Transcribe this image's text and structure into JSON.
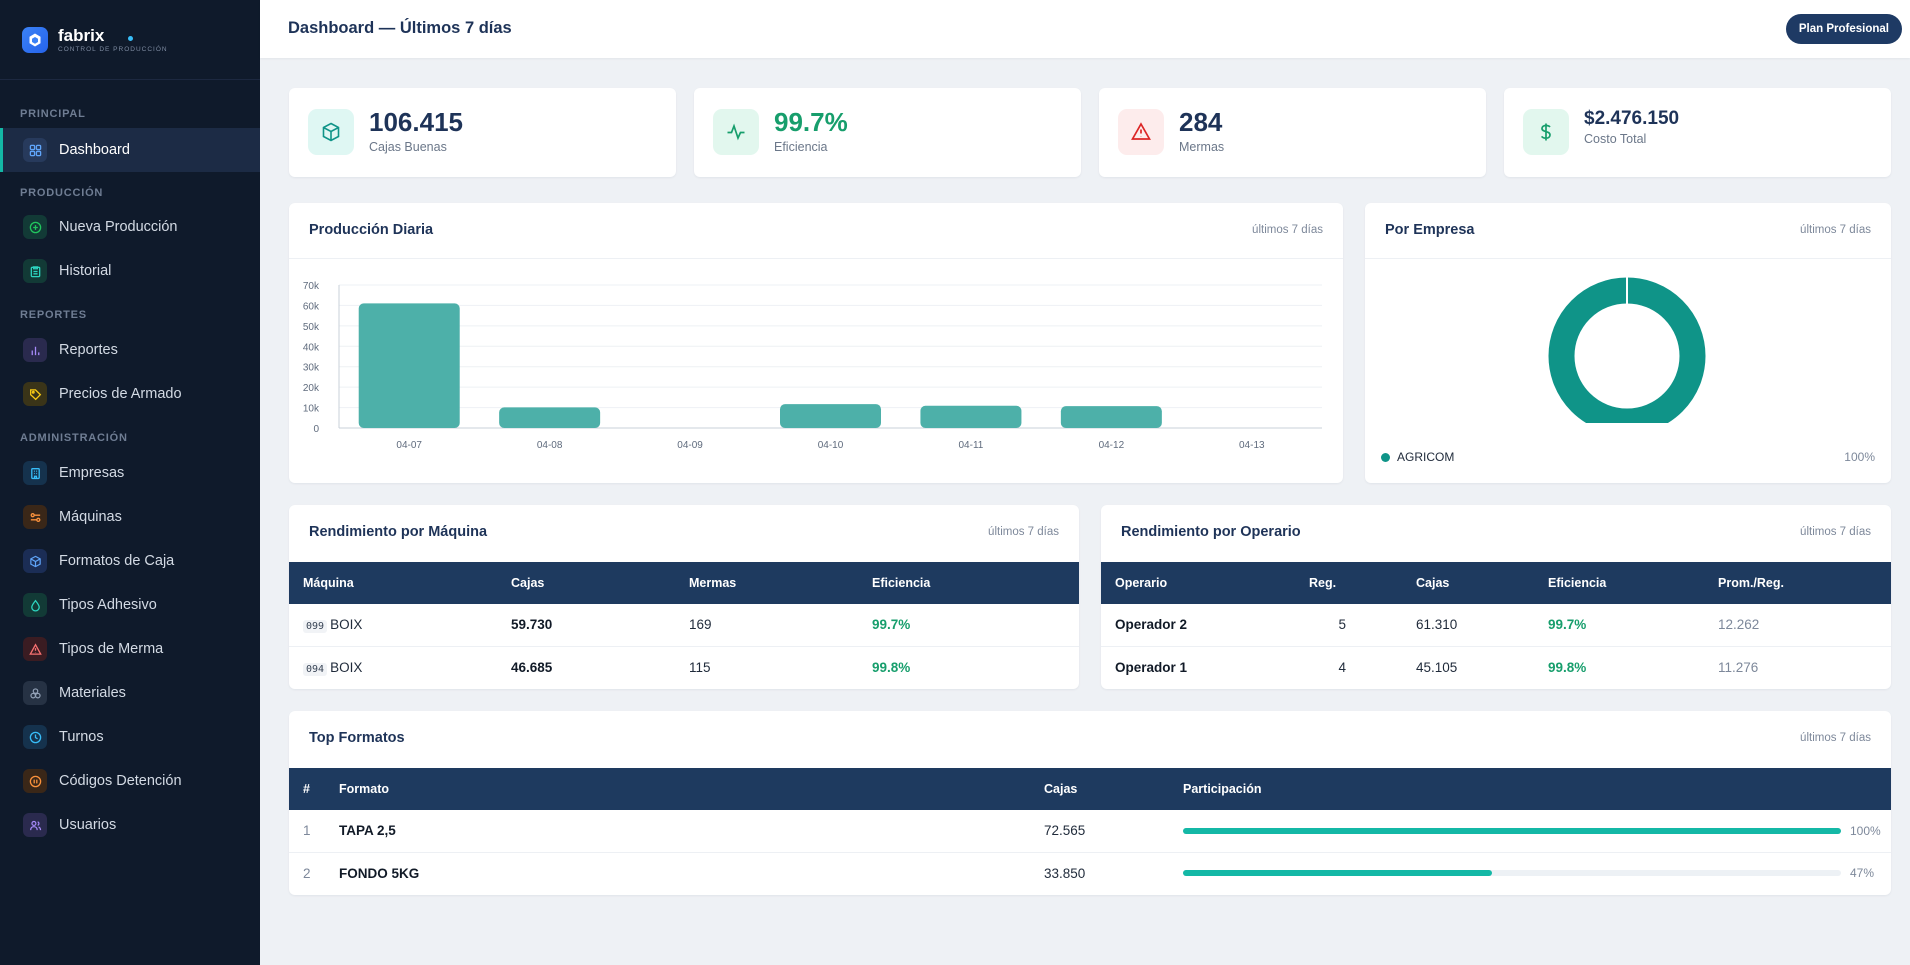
{
  "brand": {
    "name": "fabrix",
    "subtitle": "CONTROL DE PRODUCCIÓN"
  },
  "sidebar": {
    "sections": [
      "PRINCIPAL",
      "PRODUCCIÓN",
      "REPORTES",
      "ADMINISTRACIÓN"
    ],
    "items": [
      {
        "label": "Dashboard",
        "icon": "grid-icon",
        "active": true
      },
      {
        "label": "Nueva Producción",
        "icon": "plus-circle-icon"
      },
      {
        "label": "Historial",
        "icon": "clipboard-icon"
      },
      {
        "label": "Reportes",
        "icon": "bar-chart-icon"
      },
      {
        "label": "Precios de Armado",
        "icon": "tag-icon"
      },
      {
        "label": "Empresas",
        "icon": "building-icon"
      },
      {
        "label": "Máquinas",
        "icon": "wrench-icon"
      },
      {
        "label": "Formatos de Caja",
        "icon": "box-icon"
      },
      {
        "label": "Tipos Adhesivo",
        "icon": "droplet-icon"
      },
      {
        "label": "Tipos de Merma",
        "icon": "alert-triangle-icon"
      },
      {
        "label": "Materiales",
        "icon": "layers-icon"
      },
      {
        "label": "Turnos",
        "icon": "clock-icon"
      },
      {
        "label": "Códigos Detención",
        "icon": "stop-circle-icon"
      },
      {
        "label": "Usuarios",
        "icon": "users-icon"
      }
    ]
  },
  "header": {
    "title": "Dashboard — Últimos 7 días",
    "plan_label": "Plan Profesional"
  },
  "kpis": [
    {
      "value": "106.415",
      "label": "Cajas Buenas",
      "icon": "box-icon",
      "color": "#0f9488",
      "bg": "#dff7f3"
    },
    {
      "value": "99.7%",
      "label": "Eficiencia",
      "icon": "activity-icon",
      "color": "#179e6c",
      "bg": "#e2f7ee"
    },
    {
      "value": "284",
      "label": "Mermas",
      "icon": "alert-triangle-icon",
      "color": "#dc2626",
      "bg": "#fdecec"
    },
    {
      "value": "$2.476.150",
      "label": "Costo Total",
      "icon": "dollar-icon",
      "color": "#179e6c",
      "bg": "#e2f7ee"
    }
  ],
  "daily": {
    "title": "Producción Diaria",
    "subtitle": "últimos 7 días",
    "chart_data": {
      "type": "bar",
      "categories": [
        "04-07",
        "04-08",
        "04-09",
        "04-10",
        "04-11",
        "04-12",
        "04-13"
      ],
      "values": [
        61000,
        10100,
        0,
        11700,
        10900,
        10700,
        0
      ],
      "yticks": [
        "0",
        "10k",
        "20k",
        "30k",
        "40k",
        "50k",
        "60k",
        "70k"
      ],
      "ylim": [
        0,
        70000
      ],
      "color": "#4db0a9",
      "grid": true
    }
  },
  "company": {
    "title": "Por Empresa",
    "subtitle": "últimos 7 días",
    "chart_data": {
      "type": "pie",
      "labels": [
        "AGRICOM"
      ],
      "values": [
        100
      ],
      "color": "#0f9488",
      "donut": true
    },
    "legend": [
      {
        "name": "AGRICOM",
        "pct": "100%"
      }
    ]
  },
  "machines": {
    "title": "Rendimiento por Máquina",
    "subtitle": "últimos 7 días",
    "columns": [
      "Máquina",
      "Cajas",
      "Mermas",
      "Eficiencia"
    ],
    "rows": [
      {
        "code": "099",
        "name": "BOIX",
        "cajas": "59.730",
        "mermas": "169",
        "eficiencia": "99.7%"
      },
      {
        "code": "094",
        "name": "BOIX",
        "cajas": "46.685",
        "mermas": "115",
        "eficiencia": "99.8%"
      }
    ]
  },
  "operators": {
    "title": "Rendimiento por Operario",
    "subtitle": "últimos 7 días",
    "columns": [
      "Operario",
      "Reg.",
      "Cajas",
      "Eficiencia",
      "Prom./Reg."
    ],
    "rows": [
      {
        "name": "Operador 2",
        "reg": "5",
        "cajas": "61.310",
        "eficiencia": "99.7%",
        "prom": "12.262"
      },
      {
        "name": "Operador 1",
        "reg": "4",
        "cajas": "45.105",
        "eficiencia": "99.8%",
        "prom": "11.276"
      }
    ]
  },
  "formats": {
    "title": "Top Formatos",
    "subtitle": "últimos 7 días",
    "columns": [
      "#",
      "Formato",
      "Cajas",
      "Participación"
    ],
    "rows": [
      {
        "rank": "1",
        "name": "TAPA 2,5",
        "cajas": "72.565",
        "pct": "100%",
        "share": 1.0
      },
      {
        "rank": "2",
        "name": "FONDO 5KG",
        "cajas": "33.850",
        "pct": "47%",
        "share": 0.47
      }
    ]
  }
}
